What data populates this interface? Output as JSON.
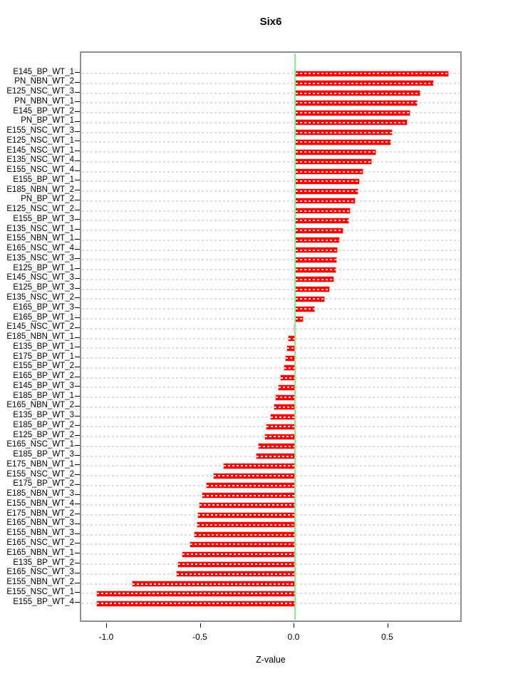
{
  "chart_data": {
    "type": "bar",
    "orientation": "horizontal",
    "title": "Six6",
    "xlabel": "Z-value",
    "xlim": [
      -1.14,
      0.9
    ],
    "x_ticks": [
      -1.0,
      -0.5,
      0.0,
      0.5
    ],
    "x_tick_labels": [
      "-1.0",
      "-0.5",
      "0.0",
      "0.5"
    ],
    "grid": "dotted-horizontal-per-row",
    "legend": "none",
    "bar_color": "#fe0000",
    "bar_border_color": "#ffbdbd",
    "zero_line_color": "#86ef86",
    "grid_color": "#dcdcdc",
    "box_color": "#8f8f8f",
    "categories": [
      "E145_BP_WT_1",
      "PN_NBN_WT_2",
      "E125_NSC_WT_3",
      "PN_NBN_WT_1",
      "E145_BP_WT_2",
      "PN_BP_WT_1",
      "E155_NSC_WT_3",
      "E125_NSC_WT_1",
      "E145_NSC_WT_1",
      "E135_NSC_WT_4",
      "E155_NSC_WT_4",
      "E155_BP_WT_1",
      "E185_NBN_WT_2",
      "PN_BP_WT_2",
      "E125_NSC_WT_2",
      "E155_BP_WT_3",
      "E135_NSC_WT_1",
      "E155_NBN_WT_1",
      "E165_NSC_WT_4",
      "E135_NSC_WT_3",
      "E125_BP_WT_1",
      "E145_NSC_WT_3",
      "E125_BP_WT_3",
      "E135_NSC_WT_2",
      "E165_BP_WT_3",
      "E165_BP_WT_1",
      "E145_NSC_WT_2",
      "E185_NBN_WT_1",
      "E135_BP_WT_1",
      "E175_BP_WT_1",
      "E155_BP_WT_2",
      "E165_BP_WT_2",
      "E145_BP_WT_3",
      "E185_BP_WT_1",
      "E165_NBN_WT_2",
      "E135_BP_WT_3",
      "E185_BP_WT_2",
      "E125_BP_WT_2",
      "E165_NSC_WT_1",
      "E185_BP_WT_3",
      "E175_NBN_WT_1",
      "E155_NSC_WT_2",
      "E175_BP_WT_2",
      "E185_NBN_WT_3",
      "E155_NBN_WT_4",
      "E175_NBN_WT_2",
      "E165_NBN_WT_3",
      "E155_NBN_WT_3",
      "E165_NSC_WT_2",
      "E165_NBN_WT_1",
      "E135_BP_WT_2",
      "E165_NSC_WT_3",
      "E155_NBN_WT_2",
      "E155_NSC_WT_1",
      "E155_BP_WT_4"
    ],
    "values": [
      0.82,
      0.74,
      0.67,
      0.655,
      0.615,
      0.6,
      0.52,
      0.515,
      0.435,
      0.41,
      0.365,
      0.345,
      0.34,
      0.325,
      0.295,
      0.29,
      0.26,
      0.24,
      0.23,
      0.225,
      0.22,
      0.21,
      0.185,
      0.16,
      0.105,
      0.045,
      -0.008,
      -0.037,
      -0.046,
      -0.052,
      -0.062,
      -0.08,
      -0.09,
      -0.105,
      -0.113,
      -0.133,
      -0.156,
      -0.163,
      -0.197,
      -0.21,
      -0.384,
      -0.436,
      -0.477,
      -0.497,
      -0.512,
      -0.52,
      -0.525,
      -0.54,
      -0.563,
      -0.606,
      -0.627,
      -0.635,
      -0.872,
      -1.06,
      -1.062
    ]
  }
}
